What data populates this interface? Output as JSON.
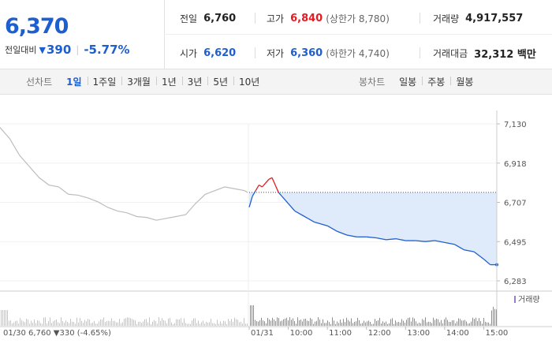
{
  "summary": {
    "price": "6,370",
    "change_label": "전일대비",
    "change_value": "390",
    "change_pct": "-5.77%",
    "prev_close_label": "전일",
    "prev_close": "6,760",
    "high_label": "고가",
    "high": "6,840",
    "upper_limit": "(상한가 8,780)",
    "volume_label": "거래량",
    "volume": "4,917,557",
    "open_label": "시가",
    "open": "6,620",
    "low_label": "저가",
    "low": "6,360",
    "lower_limit": "(하한가 4,740)",
    "amount_label": "거래대금",
    "amount": "32,312 백만"
  },
  "tabs": {
    "line_label": "선차트",
    "line_items": [
      "1일",
      "1주일",
      "3개월",
      "1년",
      "3년",
      "5년",
      "10년"
    ],
    "line_active": 0,
    "candle_label": "봉차트",
    "candle_items": [
      "일봉",
      "주봉",
      "월봉"
    ]
  },
  "colors": {
    "up": "#e31b23",
    "down": "#1e5fd0",
    "prev_day": "#bdbdbd",
    "fill": "#dce8f9"
  },
  "chart_data": {
    "type": "line",
    "y_ticks": [
      "7,130",
      "6,918",
      "6,707",
      "6,495",
      "6,283"
    ],
    "ylim": [
      6283,
      7130
    ],
    "prev_close_value": 6760,
    "x_tick_labels": [
      "01/31",
      "10:00",
      "11:00",
      "12:00",
      "13:00",
      "14:00",
      "15:00"
    ],
    "prev_day_info": "01/30  6,760 ▼330 (-4.65%)",
    "volume_legend": "거래량",
    "series": [
      {
        "name": "01/30",
        "x": [
          "09:00",
          "09:15",
          "09:30",
          "09:45",
          "10:00",
          "10:15",
          "10:30",
          "10:45",
          "11:00",
          "11:15",
          "11:30",
          "11:45",
          "12:00",
          "12:15",
          "12:30",
          "12:45",
          "13:00",
          "13:15",
          "13:30",
          "13:45",
          "14:00",
          "14:15",
          "14:30",
          "14:45",
          "15:00",
          "15:15",
          "15:20"
        ],
        "values": [
          7110,
          7050,
          6960,
          6900,
          6840,
          6800,
          6790,
          6750,
          6745,
          6730,
          6710,
          6680,
          6660,
          6650,
          6630,
          6625,
          6610,
          6620,
          6630,
          6640,
          6700,
          6750,
          6770,
          6790,
          6780,
          6770,
          6760
        ]
      },
      {
        "name": "01/31",
        "x": [
          "09:00",
          "09:05",
          "09:10",
          "09:15",
          "09:20",
          "09:25",
          "09:30",
          "09:35",
          "09:40",
          "09:45",
          "09:50",
          "10:00",
          "10:10",
          "10:20",
          "10:30",
          "10:40",
          "10:50",
          "11:00",
          "11:15",
          "11:30",
          "11:45",
          "12:00",
          "12:15",
          "12:30",
          "12:45",
          "13:00",
          "13:15",
          "13:30",
          "13:45",
          "14:00",
          "14:15",
          "14:30",
          "14:45",
          "15:00",
          "15:10",
          "15:20"
        ],
        "values": [
          6680,
          6740,
          6770,
          6800,
          6790,
          6810,
          6830,
          6840,
          6800,
          6760,
          6740,
          6700,
          6660,
          6640,
          6620,
          6600,
          6590,
          6580,
          6550,
          6530,
          6520,
          6520,
          6515,
          6505,
          6510,
          6500,
          6500,
          6495,
          6500,
          6490,
          6480,
          6450,
          6440,
          6400,
          6370,
          6370
        ]
      }
    ]
  }
}
